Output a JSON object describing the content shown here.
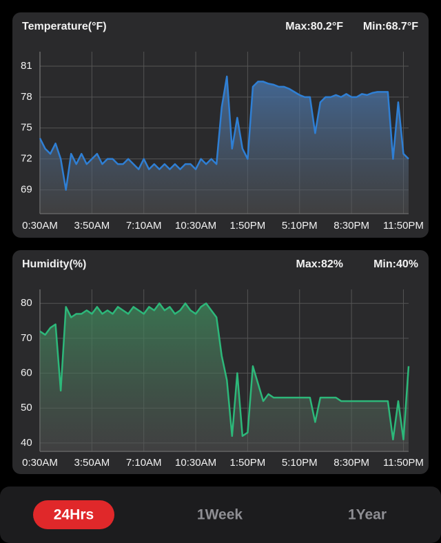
{
  "chart_data": [
    {
      "type": "line",
      "title": "Temperature(°F)",
      "max_text": "Max:80.2°F",
      "min_text": "Min:68.7°F",
      "x": [
        0,
        20,
        40,
        60,
        80,
        100,
        120,
        140,
        160,
        180,
        200,
        220,
        240,
        260,
        280,
        300,
        320,
        340,
        360,
        380,
        400,
        420,
        440,
        460,
        480,
        500,
        520,
        540,
        560,
        580,
        600,
        620,
        640,
        660,
        680,
        700,
        720,
        740,
        760,
        780,
        800,
        820,
        840,
        860,
        880,
        900,
        920,
        940,
        960,
        980,
        1000,
        1020,
        1040,
        1060,
        1080,
        1100,
        1120,
        1140,
        1160,
        1180,
        1200,
        1220,
        1240,
        1260,
        1280,
        1300,
        1320,
        1340,
        1360,
        1380,
        1400,
        1420
      ],
      "series": [
        {
          "color": "#2f7fd4",
          "values": [
            74,
            73,
            72.5,
            73.5,
            72,
            69,
            72.5,
            71.5,
            72.5,
            71.5,
            72,
            72.5,
            71.5,
            72,
            72,
            71.5,
            71.5,
            72,
            71.5,
            71,
            72,
            71,
            71.5,
            71,
            71.5,
            71,
            71.5,
            71,
            71.5,
            71.5,
            71,
            72,
            71.5,
            72,
            71.5,
            77,
            80,
            73,
            76,
            73,
            72,
            79,
            79.5,
            79.5,
            79.3,
            79.2,
            79,
            79,
            78.8,
            78.5,
            78.2,
            78,
            78,
            74.5,
            77.5,
            78,
            78,
            78.2,
            78,
            78.3,
            78,
            78,
            78.3,
            78.2,
            78.4,
            78.5,
            78.5,
            78.5,
            72,
            77.5,
            72.5,
            72
          ]
        }
      ],
      "xlim": [
        0,
        1420
      ],
      "xticks": [
        {
          "value": 0,
          "label": "0:30AM"
        },
        {
          "value": 200,
          "label": "3:50AM"
        },
        {
          "value": 400,
          "label": "7:10AM"
        },
        {
          "value": 600,
          "label": "10:30AM"
        },
        {
          "value": 800,
          "label": "1:50PM"
        },
        {
          "value": 1000,
          "label": "5:10PM"
        },
        {
          "value": 1200,
          "label": "8:30PM"
        },
        {
          "value": 1400,
          "label": "11:50PM"
        }
      ],
      "ylim": [
        66.7,
        82.4
      ],
      "yticks": [
        69,
        72,
        75,
        78,
        81
      ],
      "grid": true
    },
    {
      "type": "line",
      "title": "Humidity(%)",
      "max_text": "Max:82%",
      "min_text": "Min:40%",
      "x": [
        0,
        20,
        40,
        60,
        80,
        100,
        120,
        140,
        160,
        180,
        200,
        220,
        240,
        260,
        280,
        300,
        320,
        340,
        360,
        380,
        400,
        420,
        440,
        460,
        480,
        500,
        520,
        540,
        560,
        580,
        600,
        620,
        640,
        660,
        680,
        700,
        720,
        740,
        760,
        780,
        800,
        820,
        840,
        860,
        880,
        900,
        920,
        940,
        960,
        980,
        1000,
        1020,
        1040,
        1060,
        1080,
        1100,
        1120,
        1140,
        1160,
        1180,
        1200,
        1220,
        1240,
        1260,
        1280,
        1300,
        1320,
        1340,
        1360,
        1380,
        1400,
        1420
      ],
      "series": [
        {
          "color": "#2db87a",
          "values": [
            72,
            71,
            73,
            74,
            55,
            79,
            76,
            77,
            77,
            78,
            77,
            79,
            77,
            78,
            77,
            79,
            78,
            77,
            79,
            78,
            77,
            79,
            78,
            80,
            78,
            79,
            77,
            78,
            80,
            78,
            77,
            79,
            80,
            78,
            76,
            65,
            58,
            42,
            60,
            42,
            43,
            62,
            57,
            52,
            54,
            53,
            53,
            53,
            53,
            53,
            53,
            53,
            53,
            46,
            53,
            53,
            53,
            53,
            52,
            52,
            52,
            52,
            52,
            52,
            52,
            52,
            52,
            52,
            41,
            52,
            41,
            62
          ]
        }
      ],
      "xlim": [
        0,
        1420
      ],
      "xticks": [
        {
          "value": 0,
          "label": "0:30AM"
        },
        {
          "value": 200,
          "label": "3:50AM"
        },
        {
          "value": 400,
          "label": "7:10AM"
        },
        {
          "value": 600,
          "label": "10:30AM"
        },
        {
          "value": 800,
          "label": "1:50PM"
        },
        {
          "value": 1000,
          "label": "5:10PM"
        },
        {
          "value": 1200,
          "label": "8:30PM"
        },
        {
          "value": 1400,
          "label": "11:50PM"
        }
      ],
      "ylim": [
        37.6,
        84
      ],
      "yticks": [
        40,
        50,
        60,
        70,
        80
      ],
      "grid": true
    }
  ],
  "tabs": [
    "24Hrs",
    "1Week",
    "1Year"
  ]
}
